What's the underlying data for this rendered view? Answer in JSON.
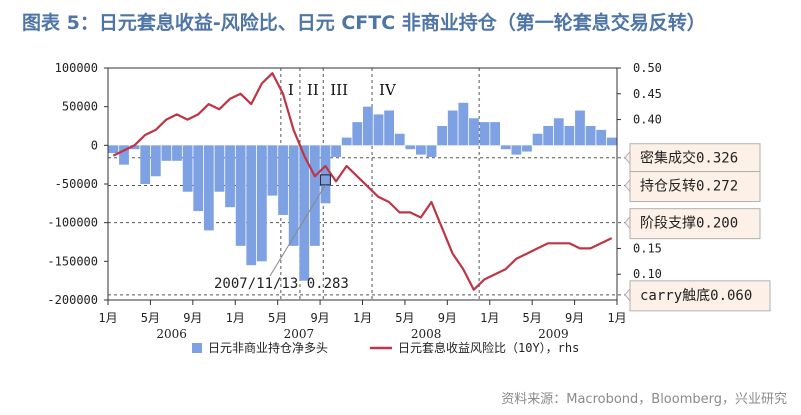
{
  "title": "图表 5：日元套息收益-风险比、日元 CFTC 非商业持仓（第一轮套息交易反转）",
  "source": "资料来源：Macrobond，Bloomberg，兴业研究",
  "colors": {
    "bar": "#7da1e3",
    "line": "#c03545",
    "grid": "#555555",
    "box_fill": "#fdf0e6",
    "box_border": "#b0b0b0"
  },
  "chart_data": {
    "type": "bar+line",
    "x_range": [
      "2006-01-01",
      "2009-12-31"
    ],
    "x_ticks": [
      "1月",
      "5月",
      "9月",
      "1月",
      "5月",
      "9月",
      "1月",
      "5月",
      "9月",
      "1月",
      "5月",
      "9月",
      "1月"
    ],
    "year_labels": [
      "2006",
      "2007",
      "2008",
      "2009"
    ],
    "left_axis": {
      "min": -200000,
      "max": 100000,
      "ticks": [
        "100000",
        "50000",
        "0",
        "-50000",
        "-100000",
        "-150000",
        "-200000"
      ]
    },
    "right_axis": {
      "min": 0.05,
      "max": 0.5,
      "ticks": [
        "0.50",
        "0.45",
        "0.40",
        "0.15",
        "0.10"
      ],
      "label": "rhs"
    },
    "series": [
      {
        "name": "日元非商业持仓净多头",
        "kind": "bar",
        "axis": "left",
        "x": [
          0,
          1,
          2,
          3,
          4,
          5,
          6,
          7,
          8,
          9,
          10,
          11,
          12,
          13,
          14,
          15,
          16,
          17,
          18,
          19,
          20,
          21,
          22,
          23,
          24,
          25,
          26,
          27,
          28,
          29,
          30,
          31,
          32,
          33,
          34,
          35,
          36,
          37,
          38,
          39,
          40,
          41,
          42,
          43,
          44,
          45,
          46,
          47
        ],
        "values": [
          -10000,
          -25000,
          -5000,
          -50000,
          -40000,
          -20000,
          -20000,
          -60000,
          -85000,
          -110000,
          -60000,
          -80000,
          -130000,
          -155000,
          -150000,
          -65000,
          -90000,
          -130000,
          -175000,
          -130000,
          -75000,
          -15000,
          10000,
          30000,
          50000,
          40000,
          45000,
          15000,
          -5000,
          -12000,
          -15000,
          25000,
          45000,
          55000,
          35000,
          30000,
          30000,
          -5000,
          -12000,
          -8000,
          15000,
          25000,
          35000,
          25000,
          45000,
          25000,
          20000,
          10000
        ]
      },
      {
        "name": "日元套息收益风险比（10Y），rhs",
        "kind": "line",
        "axis": "right",
        "x": [
          0,
          1,
          2,
          3,
          4,
          5,
          6,
          7,
          8,
          9,
          10,
          11,
          12,
          13,
          14,
          15,
          16,
          17,
          18,
          19,
          20,
          21,
          22,
          23,
          24,
          25,
          26,
          27,
          28,
          29,
          30,
          31,
          32,
          33,
          34,
          35,
          36,
          37,
          38,
          39,
          40,
          41,
          42,
          43,
          44,
          45,
          46,
          47
        ],
        "values": [
          0.33,
          0.34,
          0.35,
          0.37,
          0.38,
          0.4,
          0.41,
          0.4,
          0.41,
          0.43,
          0.42,
          0.44,
          0.45,
          0.43,
          0.47,
          0.49,
          0.45,
          0.38,
          0.33,
          0.29,
          0.31,
          0.28,
          0.31,
          0.29,
          0.27,
          0.25,
          0.24,
          0.22,
          0.22,
          0.21,
          0.24,
          0.19,
          0.14,
          0.11,
          0.07,
          0.09,
          0.1,
          0.11,
          0.13,
          0.14,
          0.15,
          0.16,
          0.16,
          0.16,
          0.15,
          0.15,
          0.16,
          0.17
        ]
      }
    ],
    "vlines": [
      {
        "x": 16.3,
        "label": "I"
      },
      {
        "x": 18.1,
        "label": "II"
      },
      {
        "x": 20.3,
        "label": "III"
      },
      {
        "x": 24.9,
        "label": "IV"
      },
      {
        "x": 35.0,
        "label": ""
      }
    ],
    "hlines": [
      {
        "value": 0.326,
        "label": "密集成交0.326"
      },
      {
        "value": 0.272,
        "label": "持仓反转0.272"
      },
      {
        "value": 0.2,
        "label": "阶段支撑0.200"
      },
      {
        "value": 0.06,
        "label": "carry触底0.060"
      }
    ],
    "callout": {
      "label": "2007/11/13 0.283",
      "x": 20.0,
      "value": 0.283
    },
    "legend": [
      {
        "label": "日元非商业持仓净多头",
        "kind": "bar"
      },
      {
        "label": "日元套息收益风险比（10Y），rhs",
        "kind": "line"
      }
    ]
  }
}
